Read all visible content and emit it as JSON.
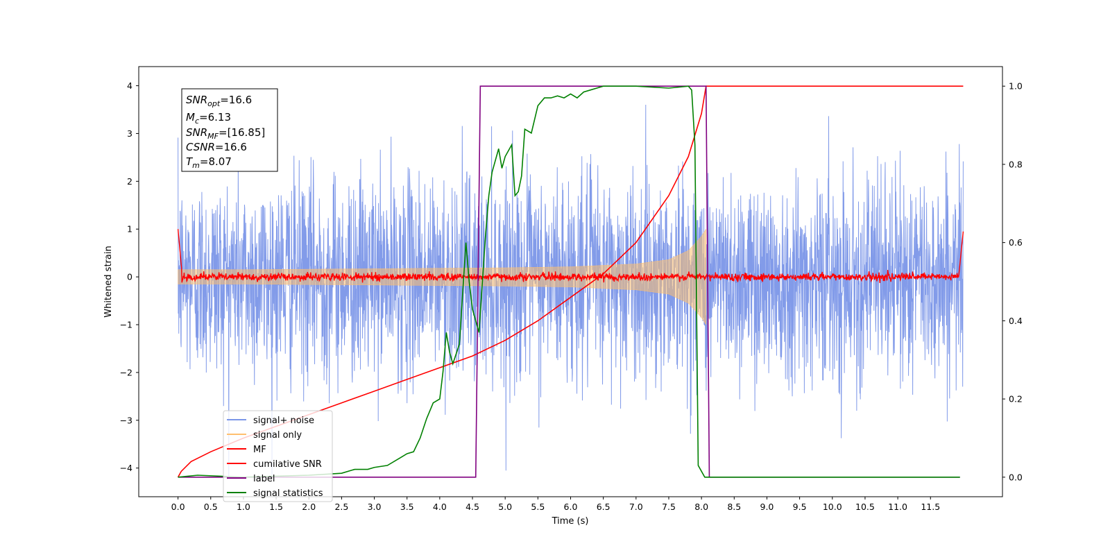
{
  "chart_data": {
    "type": "line",
    "xlabel": "Time (s)",
    "ylabel": "Whitened strain",
    "xlim": [
      -0.6,
      12.6
    ],
    "ylim": [
      -4.6,
      4.4
    ],
    "y2lim": [
      -0.05,
      1.05
    ],
    "x_ticks": [
      0.0,
      0.5,
      1.0,
      1.5,
      2.0,
      2.5,
      3.0,
      3.5,
      4.0,
      4.5,
      5.0,
      5.5,
      6.0,
      6.5,
      7.0,
      7.5,
      8.0,
      8.5,
      9.0,
      9.5,
      10.0,
      10.5,
      11.0,
      11.5
    ],
    "x_tick_labels": [
      "0.0",
      "0.5",
      "1.0",
      "1.5",
      "2.0",
      "2.5",
      "3.0",
      "3.5",
      "4.0",
      "4.5",
      "5.0",
      "5.5",
      "6.0",
      "6.5",
      "7.0",
      "7.5",
      "8.0",
      "8.5",
      "9.0",
      "9.5",
      "10.0",
      "10.5",
      "11.0",
      "11.5"
    ],
    "y_ticks": [
      -4,
      -3,
      -2,
      -1,
      0,
      1,
      2,
      3,
      4
    ],
    "y_tick_labels": [
      "−4",
      "−3",
      "−2",
      "−1",
      "0",
      "1",
      "2",
      "3",
      "4"
    ],
    "y2_ticks": [
      0.0,
      0.2,
      0.4,
      0.6,
      0.8,
      1.0
    ],
    "y2_tick_labels": [
      "0.0",
      "0.2",
      "0.4",
      "0.6",
      "0.8",
      "1.0"
    ],
    "grid": false,
    "legend_position": "lower-left",
    "stats_box": {
      "snr_opt": {
        "symbol": "SNR",
        "sub": "opt",
        "value": "=16.6"
      },
      "mc": {
        "symbol": "M",
        "sub": "c",
        "value": "=6.13"
      },
      "snr_mf": {
        "symbol": "SNR",
        "sub": "MF",
        "value": "=[16.85]"
      },
      "csnr": {
        "symbol": "CSNR",
        "sub": "",
        "value": "=16.6"
      },
      "tm": {
        "symbol": "T",
        "sub": "m",
        "value": "=8.07"
      }
    },
    "series": [
      {
        "name": "signal+ noise",
        "color": "#7b96e8",
        "axis": "left",
        "description": "whitened strain, noise standard deviation about 1, range about -4.2 to 4.0, 0 to 12 s"
      },
      {
        "name": "signal only",
        "color": "#ffbf6e",
        "axis": "left",
        "envelope": {
          "x": [
            0,
            1,
            2,
            3,
            4,
            5,
            6,
            7,
            7.5,
            7.8,
            8.0,
            8.07
          ],
          "amplitude": [
            0.15,
            0.15,
            0.16,
            0.17,
            0.18,
            0.19,
            0.21,
            0.27,
            0.36,
            0.55,
            0.85,
            1.0
          ]
        }
      },
      {
        "name": "MF",
        "color": "#ff0000",
        "axis": "left",
        "description": "matched filter output around 0, amplitude about 0.1, edge spike to 1.0"
      },
      {
        "name": "cumilative SNR",
        "color": "#ff0000",
        "axis": "right",
        "x": [
          0.0,
          0.05,
          0.2,
          0.5,
          1.0,
          1.5,
          2.0,
          2.5,
          3.0,
          3.5,
          4.0,
          4.5,
          5.0,
          5.5,
          6.0,
          6.5,
          7.0,
          7.5,
          7.8,
          8.0,
          8.07,
          12.0
        ],
        "values": [
          0.0,
          0.015,
          0.04,
          0.065,
          0.1,
          0.13,
          0.16,
          0.19,
          0.22,
          0.25,
          0.28,
          0.31,
          0.35,
          0.4,
          0.46,
          0.52,
          0.6,
          0.72,
          0.82,
          0.93,
          1.0,
          1.0
        ]
      },
      {
        "name": "label",
        "color": "#800080",
        "axis": "right",
        "x": [
          0.0,
          4.55,
          4.62,
          8.07,
          8.12,
          11.95
        ],
        "values": [
          0,
          0,
          1,
          1,
          0,
          0
        ]
      },
      {
        "name": "signal statistics",
        "color": "#008000",
        "axis": "right",
        "x": [
          0.0,
          0.3,
          1.0,
          2.0,
          2.5,
          2.7,
          2.9,
          3.0,
          3.2,
          3.4,
          3.5,
          3.6,
          3.7,
          3.8,
          3.9,
          4.0,
          4.05,
          4.1,
          4.15,
          4.2,
          4.3,
          4.4,
          4.45,
          4.5,
          4.6,
          4.7,
          4.75,
          4.8,
          4.9,
          4.95,
          5.0,
          5.1,
          5.15,
          5.2,
          5.25,
          5.3,
          5.4,
          5.5,
          5.6,
          5.7,
          5.8,
          5.9,
          6.0,
          6.1,
          6.2,
          6.3,
          6.5,
          7.0,
          7.5,
          7.8,
          7.85,
          7.9,
          7.95,
          8.05,
          8.1,
          11.95
        ],
        "values": [
          0.0,
          0.005,
          0.0,
          0.005,
          0.01,
          0.02,
          0.02,
          0.025,
          0.03,
          0.05,
          0.06,
          0.065,
          0.1,
          0.15,
          0.19,
          0.2,
          0.27,
          0.37,
          0.32,
          0.29,
          0.34,
          0.6,
          0.5,
          0.43,
          0.37,
          0.62,
          0.72,
          0.78,
          0.84,
          0.79,
          0.82,
          0.85,
          0.72,
          0.73,
          0.77,
          0.89,
          0.88,
          0.95,
          0.97,
          0.97,
          0.975,
          0.97,
          0.98,
          0.97,
          0.985,
          0.99,
          1.0,
          1.0,
          0.995,
          1.0,
          0.99,
          0.85,
          0.03,
          0.0,
          0.0,
          0.0
        ]
      }
    ]
  }
}
